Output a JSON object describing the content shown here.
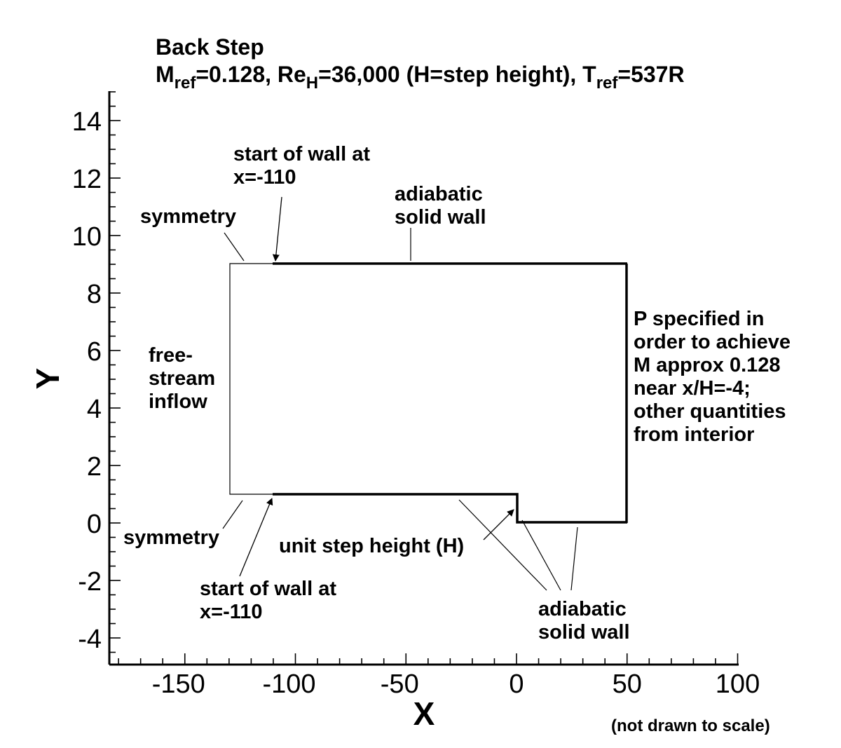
{
  "title": {
    "line1": "Back Step",
    "m_main": "M",
    "m_sub": "ref",
    "m_val": "=0.128, Re",
    "re_sub": "H",
    "re_val": "=36,000 (H=step height), T",
    "t_sub": "ref",
    "t_val": "=537R"
  },
  "axes": {
    "x_title": "X",
    "y_title": "Y",
    "x_ticks": [
      "-150",
      "-100",
      "-50",
      "0",
      "50",
      "100"
    ],
    "y_ticks": [
      "14",
      "12",
      "10",
      "8",
      "6",
      "4",
      "2",
      "0",
      "-2",
      "-4"
    ]
  },
  "annotations": {
    "wall_start_top": [
      "start of wall at",
      "x=-110"
    ],
    "adiabatic_top": [
      "adiabatic",
      "solid wall"
    ],
    "symmetry_top": "symmetry",
    "inflow": [
      "free-",
      "stream",
      "inflow"
    ],
    "outflow": [
      "P specified in",
      "order to achieve",
      "M approx 0.128",
      "near x/H=-4;",
      "other quantities",
      "from interior"
    ],
    "symmetry_bottom": "symmetry",
    "step_height": "unit step height (H)",
    "wall_start_bottom": [
      "start of wall at",
      "x=-110"
    ],
    "adiabatic_bottom": [
      "adiabatic",
      "solid wall"
    ]
  },
  "footnote": "(not drawn to scale)"
}
